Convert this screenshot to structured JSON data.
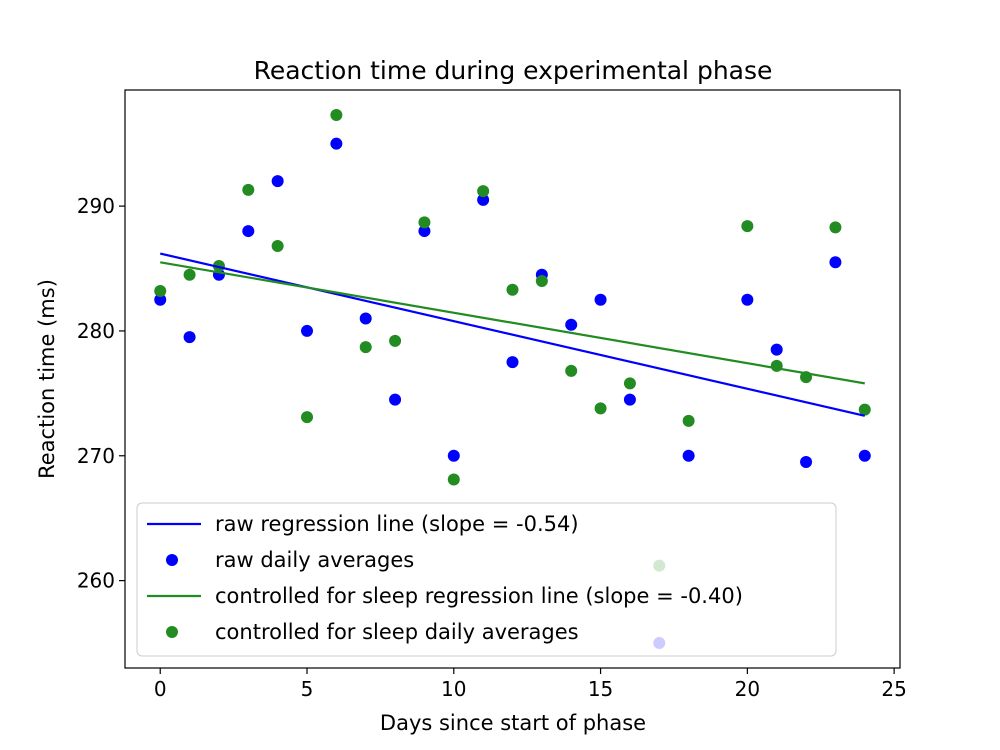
{
  "chart_data": {
    "type": "scatter",
    "title": "Reaction time during experimental phase",
    "xlabel": "Days since start of phase",
    "ylabel": "Reaction time (ms)",
    "xlim": [
      -1.2,
      25.2
    ],
    "ylim": [
      253.0,
      299.3
    ],
    "xticks": [
      0,
      5,
      10,
      15,
      20,
      25
    ],
    "yticks": [
      260,
      270,
      280,
      290
    ],
    "grid": false,
    "legend_position": "lower-left",
    "series": [
      {
        "name": "raw regression line (slope = -0.54)",
        "kind": "line",
        "color": "#0000ff",
        "x": [
          0,
          24
        ],
        "y": [
          286.2,
          273.2
        ]
      },
      {
        "name": "raw daily averages",
        "kind": "scatter",
        "color": "#0000ff",
        "x": [
          0,
          1,
          2,
          3,
          4,
          5,
          6,
          7,
          8,
          9,
          10,
          11,
          12,
          13,
          14,
          15,
          16,
          17,
          18,
          20,
          21,
          22,
          23,
          24
        ],
        "y": [
          282.5,
          279.5,
          284.5,
          288.0,
          292.0,
          280.0,
          295.0,
          281.0,
          274.5,
          288.0,
          270.0,
          290.5,
          277.5,
          284.5,
          280.5,
          282.5,
          274.5,
          255.0,
          270.0,
          282.5,
          278.5,
          269.5,
          285.5,
          270.0
        ]
      },
      {
        "name": "controlled for sleep regression line (slope = -0.40)",
        "kind": "line",
        "color": "#228b22",
        "x": [
          0,
          24
        ],
        "y": [
          285.5,
          275.8
        ]
      },
      {
        "name": "controlled for sleep daily averages",
        "kind": "scatter",
        "color": "#228b22",
        "x": [
          0,
          1,
          2,
          3,
          4,
          5,
          6,
          7,
          8,
          9,
          10,
          11,
          12,
          13,
          14,
          15,
          16,
          17,
          18,
          20,
          21,
          22,
          23,
          24
        ],
        "y": [
          283.2,
          284.5,
          285.2,
          291.3,
          286.8,
          273.1,
          297.3,
          278.7,
          279.2,
          288.7,
          268.1,
          291.2,
          283.3,
          284.0,
          276.8,
          273.8,
          275.8,
          261.2,
          272.8,
          288.4,
          277.2,
          276.3,
          288.3,
          273.7
        ]
      }
    ]
  }
}
